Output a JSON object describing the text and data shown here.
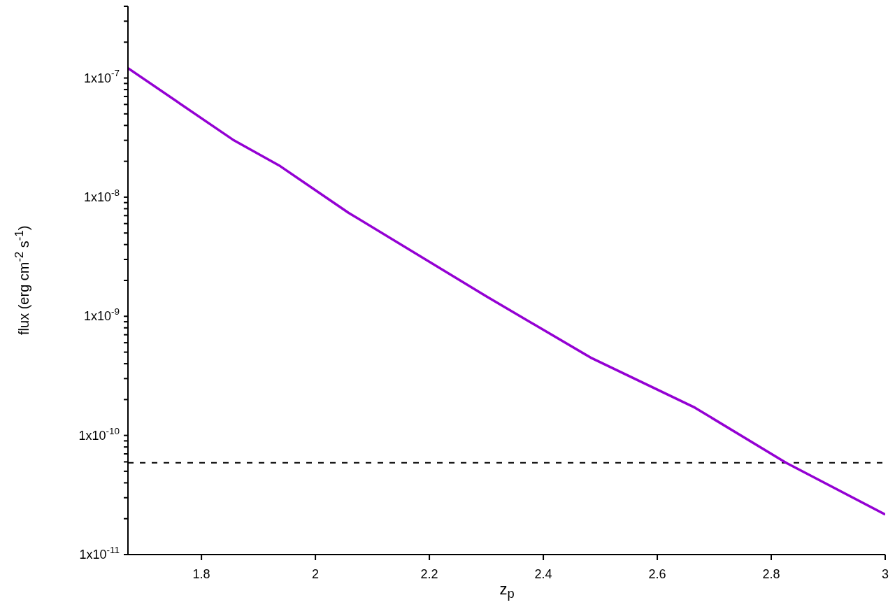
{
  "chart_data": {
    "type": "line",
    "xlabel": "z$_{p}$",
    "ylabel": "flux (erg cm$^{-2}$ s$^{-1}$)",
    "log": "y",
    "x": [
      1.671,
      1.855,
      1.936,
      2.058,
      2.301,
      2.483,
      2.666,
      2.826,
      3.0
    ],
    "series": [
      {
        "color": "#9400d3",
        "values": [
          1.21e-07,
          3.04e-08,
          1.85e-08,
          7.4e-09,
          1.46e-09,
          4.5e-10,
          1.71e-10,
          5.9e-11,
          2.17e-11
        ]
      }
    ],
    "xlim": [
      1.671,
      3
    ],
    "xticks": [
      1.8,
      2,
      2.2,
      2.4,
      2.6,
      2.8,
      3
    ],
    "ylim": [
      1e-11,
      4e-07
    ],
    "yticks": [
      {
        "value": 1e-11,
        "label": "1x10$^{-11}$"
      },
      {
        "value": 2e-11,
        "label": null
      },
      {
        "value": 3e-11,
        "label": null
      },
      {
        "value": 4e-11,
        "label": null
      },
      {
        "value": 5e-11,
        "label": null
      },
      {
        "value": 6e-11,
        "label": null
      },
      {
        "value": 7e-11,
        "label": null
      },
      {
        "value": 8e-11,
        "label": null
      },
      {
        "value": 9e-11,
        "label": null
      },
      {
        "value": 1e-10,
        "label": "1x10$^{-10}$"
      },
      {
        "value": 2e-10,
        "label": null
      },
      {
        "value": 3e-10,
        "label": null
      },
      {
        "value": 4e-10,
        "label": null
      },
      {
        "value": 5e-10,
        "label": null
      },
      {
        "value": 6e-10,
        "label": null
      },
      {
        "value": 7e-10,
        "label": null
      },
      {
        "value": 8e-10,
        "label": null
      },
      {
        "value": 9e-10,
        "label": null
      },
      {
        "value": 1e-09,
        "label": "1x10$^{-9}$"
      },
      {
        "value": 2e-09,
        "label": null
      },
      {
        "value": 3e-09,
        "label": null
      },
      {
        "value": 4e-09,
        "label": null
      },
      {
        "value": 5e-09,
        "label": null
      },
      {
        "value": 6e-09,
        "label": null
      },
      {
        "value": 7e-09,
        "label": null
      },
      {
        "value": 8e-09,
        "label": null
      },
      {
        "value": 9e-09,
        "label": null
      },
      {
        "value": 1e-08,
        "label": "1x10$^{-8}$"
      },
      {
        "value": 2e-08,
        "label": null
      },
      {
        "value": 3e-08,
        "label": null
      },
      {
        "value": 4e-08,
        "label": null
      },
      {
        "value": 5e-08,
        "label": null
      },
      {
        "value": 6e-08,
        "label": null
      },
      {
        "value": 7e-08,
        "label": null
      },
      {
        "value": 8e-08,
        "label": null
      },
      {
        "value": 9e-08,
        "label": null
      },
      {
        "value": 1e-07,
        "label": "1x10$^{-7}$"
      },
      {
        "value": 2e-07,
        "label": null
      },
      {
        "value": 3e-07,
        "label": null
      },
      {
        "value": 4e-07,
        "label": null
      }
    ],
    "ref_lines": [
      {
        "axis": "y",
        "value": 5.9e-11,
        "color": "#000000",
        "line_style": "dashed"
      }
    ],
    "grid": false
  }
}
